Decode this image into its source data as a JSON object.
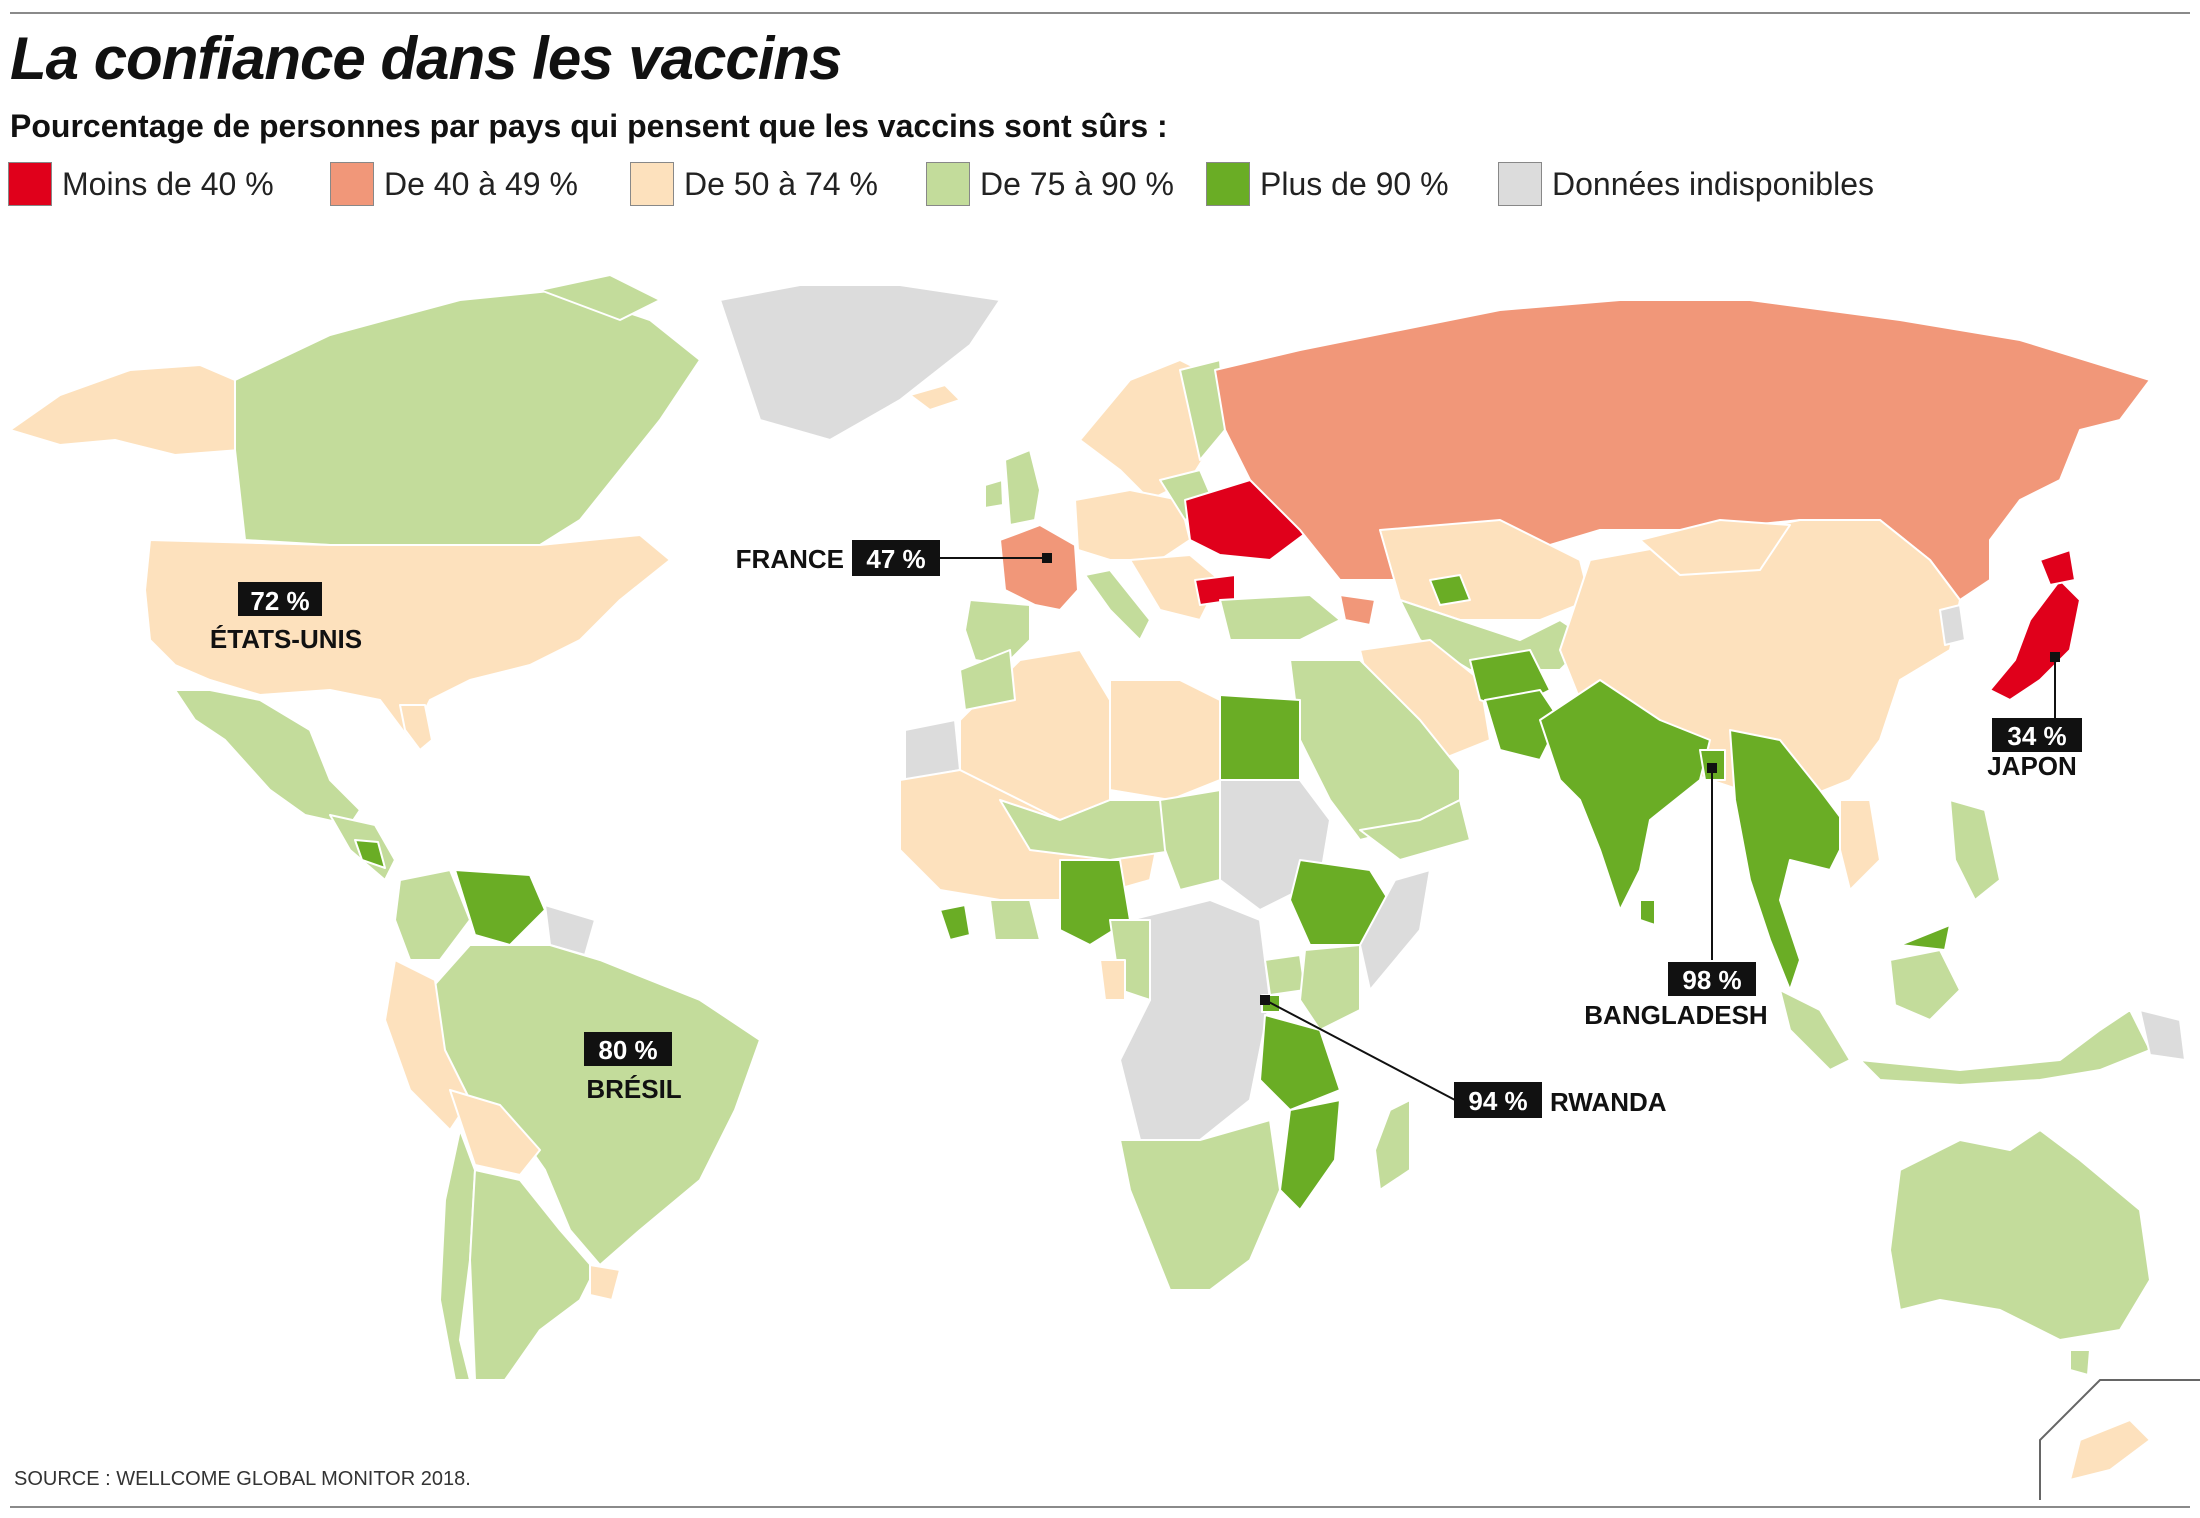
{
  "title": "La confiance dans les vaccins",
  "subtitle": "Pourcentage de personnes par pays qui pensent que les vaccins sont sûrs :",
  "legend": [
    {
      "label": "Moins de 40 %",
      "color": "#e0001b"
    },
    {
      "label": "De 40 à 49 %",
      "color": "#f19779"
    },
    {
      "label": "De 50 à 74 %",
      "color": "#fde1bd"
    },
    {
      "label": "De 75 à 90 %",
      "color": "#c3dc9b"
    },
    {
      "label": "Plus de 90 %",
      "color": "#6aad25"
    },
    {
      "label": "Données indisponibles",
      "color": "#dcdcdc"
    }
  ],
  "callouts": {
    "usa": {
      "value": "72 %",
      "name": "ÉTATS-UNIS"
    },
    "france": {
      "value": "47 %",
      "name": "FRANCE"
    },
    "japan": {
      "value": "34 %",
      "name": "JAPON"
    },
    "brazil": {
      "value": "80 %",
      "name": "BRÉSIL"
    },
    "bangladesh": {
      "value": "98 %",
      "name": "BANGLADESH"
    },
    "rwanda": {
      "value": "94 %",
      "name": "RWANDA"
    }
  },
  "source": "SOURCE : WELLCOME GLOBAL MONITOR 2018."
}
